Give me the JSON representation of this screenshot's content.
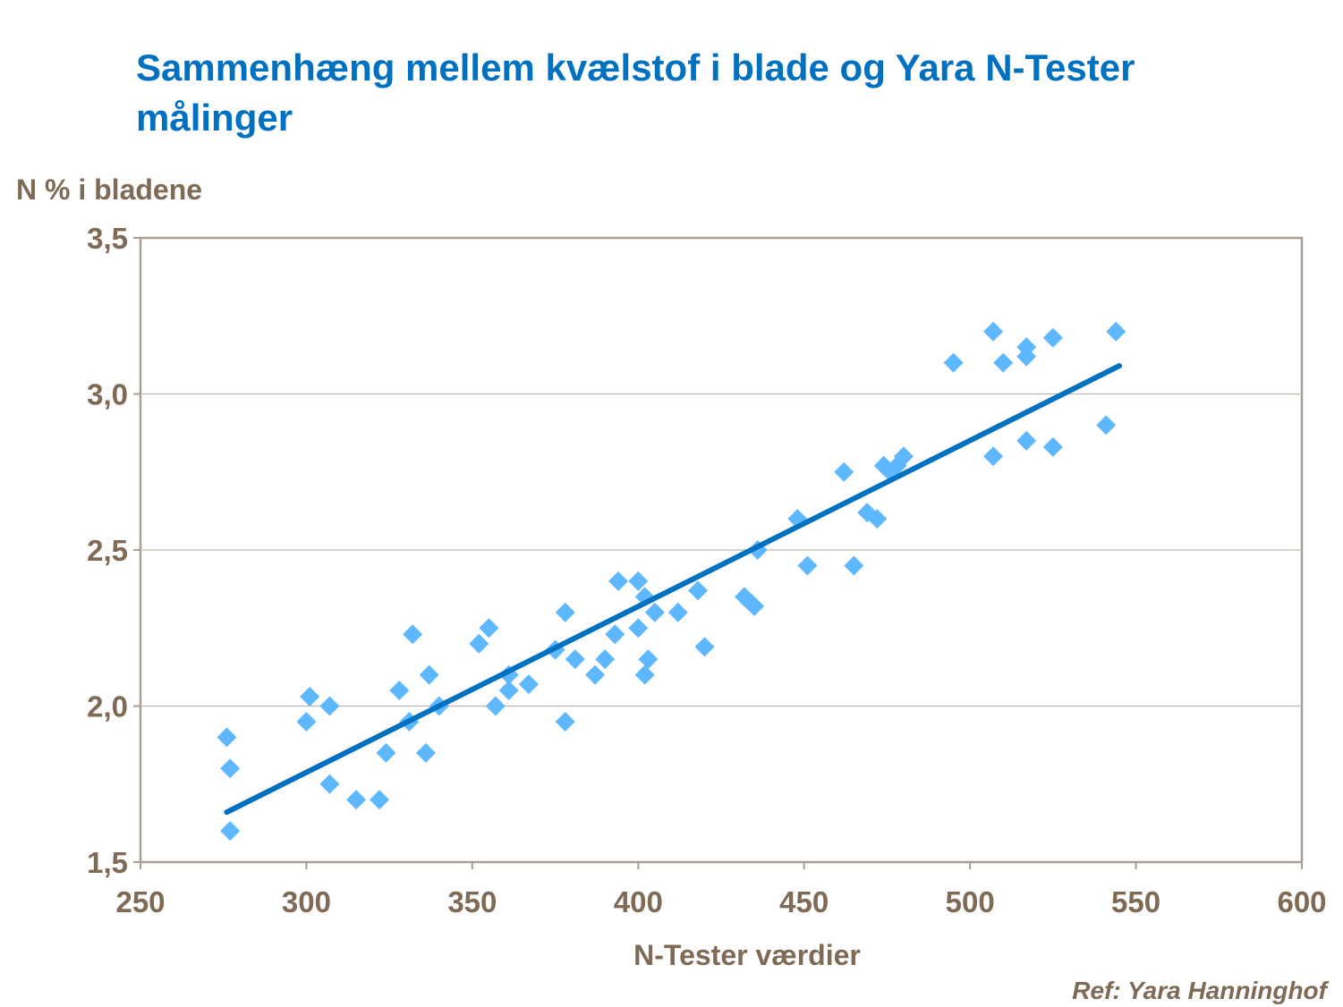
{
  "chart_data": {
    "type": "scatter",
    "title": "Sammenhæng mellem kvælstof i blade og Yara N-Tester målinger",
    "ylabel": "N % i bladene",
    "xlabel": "N-Tester værdier",
    "reference": "Ref: Yara Hanninghof",
    "xlim": [
      250,
      600
    ],
    "ylim": [
      1.5,
      3.5
    ],
    "xticks": [
      "250",
      "300",
      "350",
      "400",
      "450",
      "500",
      "550",
      "600"
    ],
    "yticks": [
      "1,5",
      "2,0",
      "2,5",
      "3,0",
      "3,5"
    ],
    "grid": "horizontal",
    "legend": "none",
    "marker_color": "#5eb8ff",
    "trend_color": "#0070c0",
    "trendline": {
      "x": [
        276,
        545
      ],
      "y": [
        1.66,
        3.09
      ]
    },
    "points": [
      [
        276,
        1.9
      ],
      [
        277,
        1.8
      ],
      [
        277,
        1.6
      ],
      [
        300,
        1.95
      ],
      [
        301,
        2.03
      ],
      [
        307,
        2.0
      ],
      [
        307,
        1.75
      ],
      [
        315,
        1.7
      ],
      [
        322,
        1.7
      ],
      [
        324,
        1.85
      ],
      [
        328,
        2.05
      ],
      [
        331,
        1.95
      ],
      [
        332,
        2.23
      ],
      [
        336,
        1.85
      ],
      [
        337,
        2.1
      ],
      [
        340,
        2.0
      ],
      [
        352,
        2.2
      ],
      [
        355,
        2.25
      ],
      [
        357,
        2.0
      ],
      [
        361,
        2.1
      ],
      [
        361,
        2.05
      ],
      [
        367,
        2.07
      ],
      [
        375,
        2.18
      ],
      [
        378,
        2.3
      ],
      [
        378,
        1.95
      ],
      [
        381,
        2.15
      ],
      [
        387,
        2.1
      ],
      [
        390,
        2.15
      ],
      [
        393,
        2.23
      ],
      [
        394,
        2.4
      ],
      [
        400,
        2.4
      ],
      [
        400,
        2.25
      ],
      [
        402,
        2.35
      ],
      [
        402,
        2.1
      ],
      [
        403,
        2.15
      ],
      [
        405,
        2.3
      ],
      [
        412,
        2.3
      ],
      [
        418,
        2.37
      ],
      [
        420,
        2.19
      ],
      [
        432,
        2.35
      ],
      [
        434,
        2.33
      ],
      [
        435,
        2.32
      ],
      [
        436,
        2.5
      ],
      [
        448,
        2.6
      ],
      [
        451,
        2.45
      ],
      [
        462,
        2.75
      ],
      [
        465,
        2.45
      ],
      [
        469,
        2.62
      ],
      [
        472,
        2.6
      ],
      [
        474,
        2.77
      ],
      [
        476,
        2.75
      ],
      [
        478,
        2.77
      ],
      [
        480,
        2.8
      ],
      [
        495,
        3.1
      ],
      [
        507,
        3.2
      ],
      [
        507,
        2.8
      ],
      [
        510,
        3.1
      ],
      [
        517,
        3.15
      ],
      [
        517,
        3.12
      ],
      [
        517,
        2.85
      ],
      [
        525,
        3.18
      ],
      [
        525,
        2.83
      ],
      [
        541,
        2.9
      ],
      [
        544,
        3.2
      ]
    ]
  }
}
